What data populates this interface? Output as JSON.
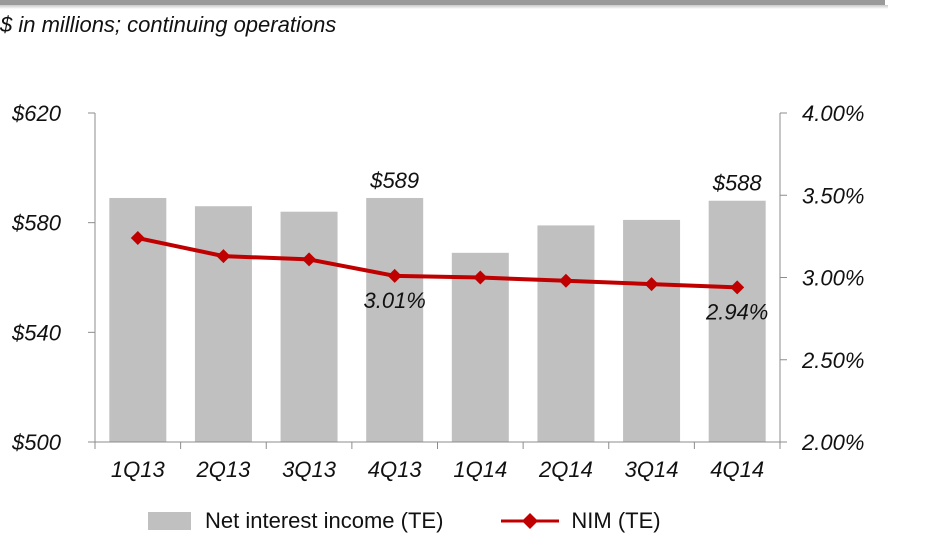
{
  "subtitle": "$ in millions; continuing operations",
  "chart_data": {
    "type": "bar",
    "categories": [
      "1Q13",
      "2Q13",
      "3Q13",
      "4Q13",
      "1Q14",
      "2Q14",
      "3Q14",
      "4Q14"
    ],
    "series": [
      {
        "name": "Net interest income (TE)",
        "type": "bar",
        "axis": "left",
        "values": [
          589,
          586,
          584,
          589,
          569,
          579,
          581,
          588
        ],
        "color": "#c0c0c0"
      },
      {
        "name": "NIM (TE)",
        "type": "line",
        "axis": "right",
        "values": [
          3.24,
          3.13,
          3.11,
          3.01,
          3.0,
          2.98,
          2.96,
          2.94
        ],
        "color": "#c00000"
      }
    ],
    "y_left": {
      "ticks": [
        "$500",
        "$540",
        "$580",
        "$620"
      ],
      "min": 500,
      "max": 620
    },
    "y_right": {
      "ticks": [
        "2.00%",
        "2.50%",
        "3.00%",
        "3.50%",
        "4.00%"
      ],
      "min": 2.0,
      "max": 4.0
    },
    "data_labels": [
      {
        "series": 0,
        "index": 3,
        "text": "$589"
      },
      {
        "series": 0,
        "index": 7,
        "text": "$588"
      },
      {
        "series": 1,
        "index": 3,
        "text": "3.01%"
      },
      {
        "series": 1,
        "index": 7,
        "text": "2.94%"
      }
    ],
    "legend_position": "bottom",
    "grid": false
  }
}
